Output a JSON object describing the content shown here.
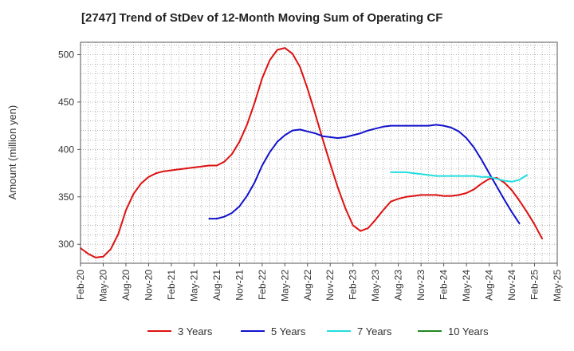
{
  "chart_data": {
    "type": "line",
    "title": "[2747]  Trend of StDev of 12-Month Moving Sum of Operating CF",
    "xlabel": "",
    "ylabel": "Amount (million yen)",
    "ylim": [
      280,
      513
    ],
    "yticks": [
      300,
      350,
      400,
      450,
      500
    ],
    "x_tick_labels": [
      "Feb-20",
      "May-20",
      "Aug-20",
      "Nov-20",
      "Feb-21",
      "May-21",
      "Aug-21",
      "Nov-21",
      "Feb-22",
      "May-22",
      "Aug-22",
      "Nov-22",
      "Feb-23",
      "May-23",
      "Aug-23",
      "Nov-23",
      "Feb-24",
      "May-24",
      "Aug-24",
      "Nov-24",
      "Feb-25",
      "May-25"
    ],
    "x_start": "Feb-20",
    "grid": true,
    "legend_position": "bottom",
    "series": [
      {
        "name": "3 Years",
        "color": "#dd1111",
        "start": "Feb-20",
        "values": [
          296,
          290,
          286,
          287,
          295,
          311,
          336,
          353,
          364,
          371,
          375,
          377,
          378,
          379,
          380,
          381,
          382,
          383,
          383,
          387,
          395,
          408,
          426,
          449,
          475,
          494,
          505,
          507,
          501,
          487,
          464,
          438,
          411,
          385,
          360,
          338,
          320,
          314,
          317,
          326,
          336,
          345,
          348,
          350,
          351,
          352,
          352,
          352,
          351,
          351,
          352,
          354,
          358,
          364,
          369,
          370,
          365,
          357,
          346,
          334,
          321,
          306
        ]
      },
      {
        "name": "5 Years",
        "color": "#1111cc",
        "start": "Jul-21",
        "values": [
          327,
          327,
          329,
          333,
          340,
          351,
          365,
          383,
          397,
          408,
          415,
          420,
          421,
          419,
          417,
          414,
          413,
          412,
          413,
          415,
          417,
          420,
          422,
          424,
          425,
          425,
          425,
          425,
          425,
          425,
          426,
          425,
          423,
          419,
          412,
          402,
          389,
          375,
          361,
          347,
          334,
          322
        ]
      },
      {
        "name": "7 Years",
        "color": "#22dddd",
        "start": "Jul-23",
        "values": [
          376,
          376,
          376,
          375,
          374,
          373,
          372,
          372,
          372,
          372,
          372,
          372,
          371,
          371,
          369,
          367,
          366,
          368,
          373
        ]
      },
      {
        "name": "10 Years",
        "color": "#228822",
        "start": "Jul-23",
        "values": []
      }
    ]
  }
}
